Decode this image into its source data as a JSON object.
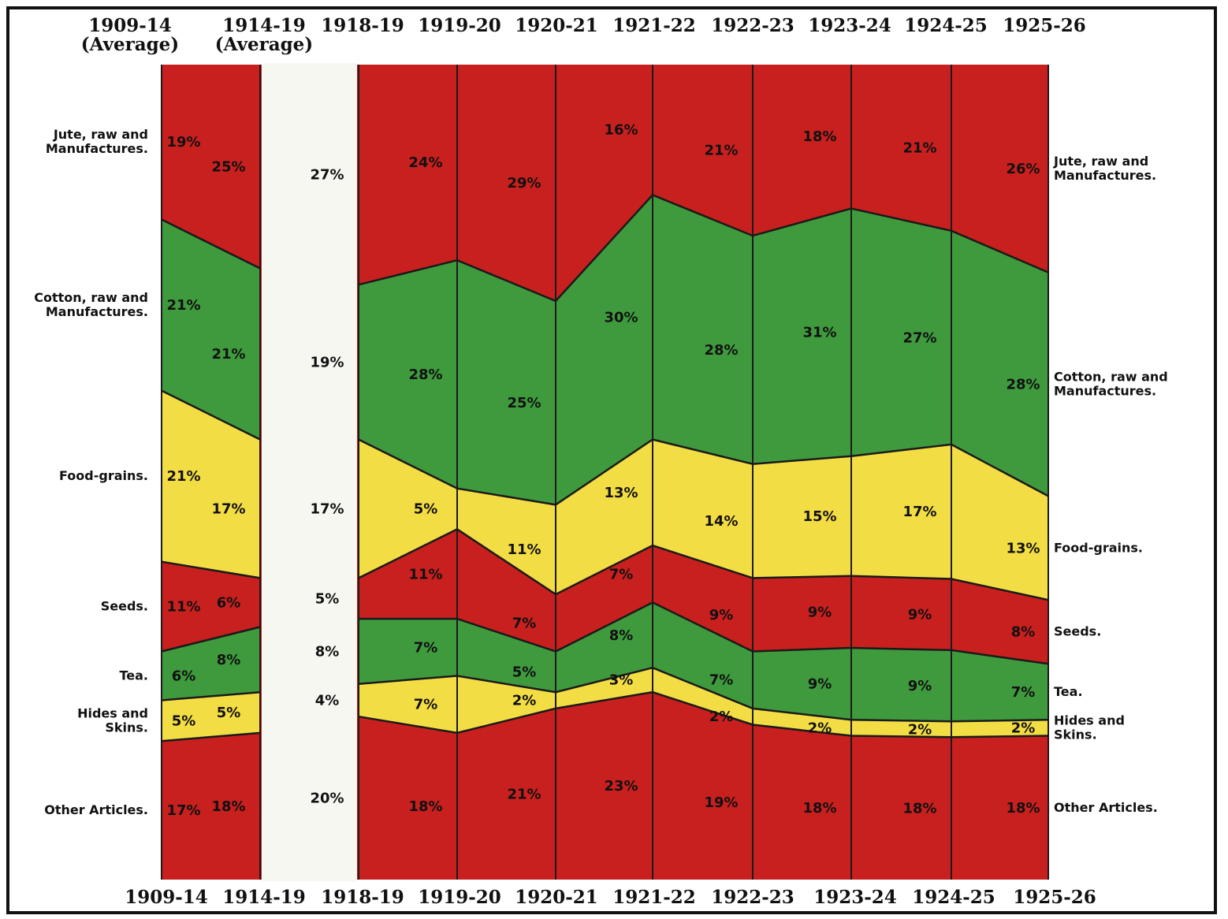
{
  "chart_data": {
    "type": "area",
    "title": "",
    "top_labels": [
      "1909-14",
      "1914-19",
      "1918-19",
      "1919-20",
      "1920-21",
      "1921-22",
      "1922-23",
      "1923-24",
      "1924-25",
      "1925-26"
    ],
    "top_sublabels": [
      "(Average)",
      "(Average)"
    ],
    "bottom_labels": [
      "1909-14",
      "1914-19",
      "1918-19",
      "1919-20",
      "1920-21",
      "1921-22",
      "1922-23",
      "1923-24",
      "1924-25",
      "1925-26"
    ],
    "periods": [
      "1909-14",
      "1914-19",
      "1918-19",
      "1919-20",
      "1920-21",
      "1921-22",
      "1922-23",
      "1923-24",
      "1924-25",
      "1925-26"
    ],
    "unit": "%",
    "series": [
      {
        "name": "Other Articles.",
        "label_right": "Other Articles.",
        "color": "#c8201e",
        "values": [
          17,
          18,
          20,
          18,
          21,
          23,
          19,
          18,
          18,
          18
        ],
        "labels": [
          "17%",
          "18%",
          "20%",
          "18%",
          "21%",
          "23%",
          "19%",
          "18%",
          "18%",
          "18%"
        ]
      },
      {
        "name": "Hides and Skins.",
        "label_right": "Hides and Skins.",
        "color": "#f3dd44",
        "values": [
          5,
          5,
          4,
          7,
          2,
          3,
          2,
          2,
          2,
          2
        ],
        "labels": [
          "5%",
          "5%",
          "4%",
          "7%",
          "2%",
          "3%",
          "2%",
          "2%",
          "2%",
          "2%"
        ]
      },
      {
        "name": "Tea.",
        "label_right": "Tea.",
        "color": "#3f9a3e",
        "values": [
          6,
          8,
          8,
          7,
          5,
          8,
          7,
          9,
          9,
          7
        ],
        "labels": [
          "6%",
          "8%",
          "8%",
          "7%",
          "5%",
          "8%",
          "7%",
          "9%",
          "9%",
          "7%"
        ]
      },
      {
        "name": "Seeds.",
        "label_right": "Seeds.",
        "color": "#c8201e",
        "values": [
          11,
          6,
          5,
          11,
          7,
          7,
          9,
          9,
          9,
          8
        ],
        "labels": [
          "11%",
          "6%",
          "5%",
          "11%",
          "7%",
          "7%",
          "9%",
          "9%",
          "9%",
          "8%"
        ]
      },
      {
        "name": "Food-grains.",
        "label_right": "Food-grains.",
        "color": "#f3dd44",
        "values": [
          21,
          17,
          17,
          5,
          11,
          13,
          14,
          15,
          17,
          13
        ],
        "labels": [
          "21%",
          "17%",
          "17%",
          "5%",
          "11%",
          "13%",
          "14%",
          "15%",
          "17%",
          "13%"
        ]
      },
      {
        "name": "Cotton, raw and Manufactures.",
        "label_right": "Cotton, raw and Manufactures.",
        "color": "#3f9a3e",
        "values": [
          21,
          21,
          19,
          28,
          25,
          30,
          28,
          31,
          27,
          28
        ],
        "labels": [
          "21%",
          "21%",
          "19%",
          "28%",
          "25%",
          "30%",
          "28%",
          "31%",
          "27%",
          "28%"
        ]
      },
      {
        "name": "Jute, raw and Manufactures.",
        "label_right": "Jute, raw and Manufactures.",
        "color": "#c8201e",
        "values": [
          19,
          25,
          27,
          24,
          29,
          16,
          21,
          18,
          21,
          26
        ],
        "labels": [
          "19%",
          "25%",
          "27%",
          "24%",
          "29%",
          "16%",
          "21%",
          "18%",
          "21%",
          "26%"
        ]
      }
    ],
    "ylim": [
      0,
      100
    ],
    "gap_between": [
      "1914-19",
      "1918-19"
    ],
    "grid": false,
    "legend": "left and right"
  }
}
